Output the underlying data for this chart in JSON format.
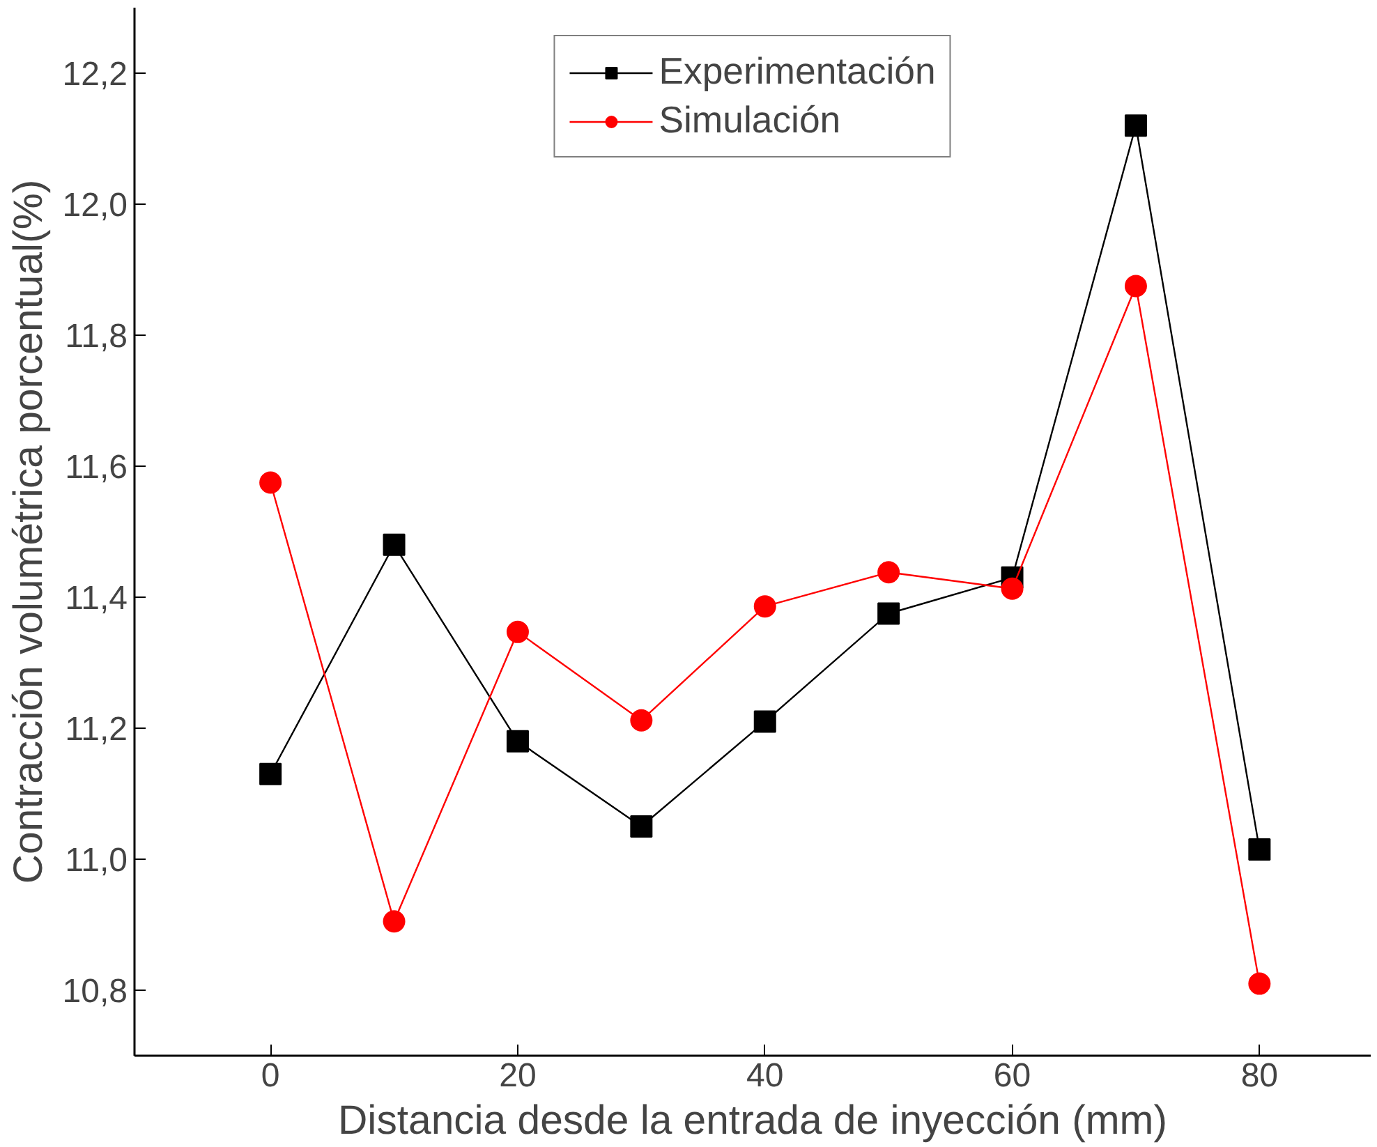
{
  "chart_data": {
    "type": "line",
    "xlabel": "Distancia desde la entrada de inyección (mm)",
    "ylabel": "Contracción volumétrica porcentual(%)",
    "x": [
      0,
      10,
      20,
      30,
      40,
      50,
      60,
      70,
      80
    ],
    "series": [
      {
        "name": "Experimentación",
        "color": "#000000",
        "marker": "square",
        "values": [
          11.13,
          11.48,
          11.18,
          11.05,
          11.21,
          11.375,
          11.43,
          12.12,
          11.015
        ]
      },
      {
        "name": "Simulación",
        "color": "#ff0000",
        "marker": "circle",
        "values": [
          11.575,
          10.905,
          11.347,
          11.212,
          11.386,
          11.438,
          11.413,
          11.875,
          10.81
        ]
      }
    ],
    "xlim": [
      -11,
      89
    ],
    "ylim": [
      10.7,
      12.3
    ],
    "xticks": [
      0,
      20,
      40,
      60,
      80
    ],
    "yticks": [
      {
        "value": 10.8,
        "label": "10,8"
      },
      {
        "value": 11.0,
        "label": "11,0"
      },
      {
        "value": 11.2,
        "label": "11,2"
      },
      {
        "value": 11.4,
        "label": "11,4"
      },
      {
        "value": 11.6,
        "label": "11,6"
      },
      {
        "value": 11.8,
        "label": "11,8"
      },
      {
        "value": 12.0,
        "label": "12,0"
      },
      {
        "value": 12.2,
        "label": "12,2"
      }
    ],
    "grid": false,
    "legend": "top",
    "line_style": "solid"
  }
}
